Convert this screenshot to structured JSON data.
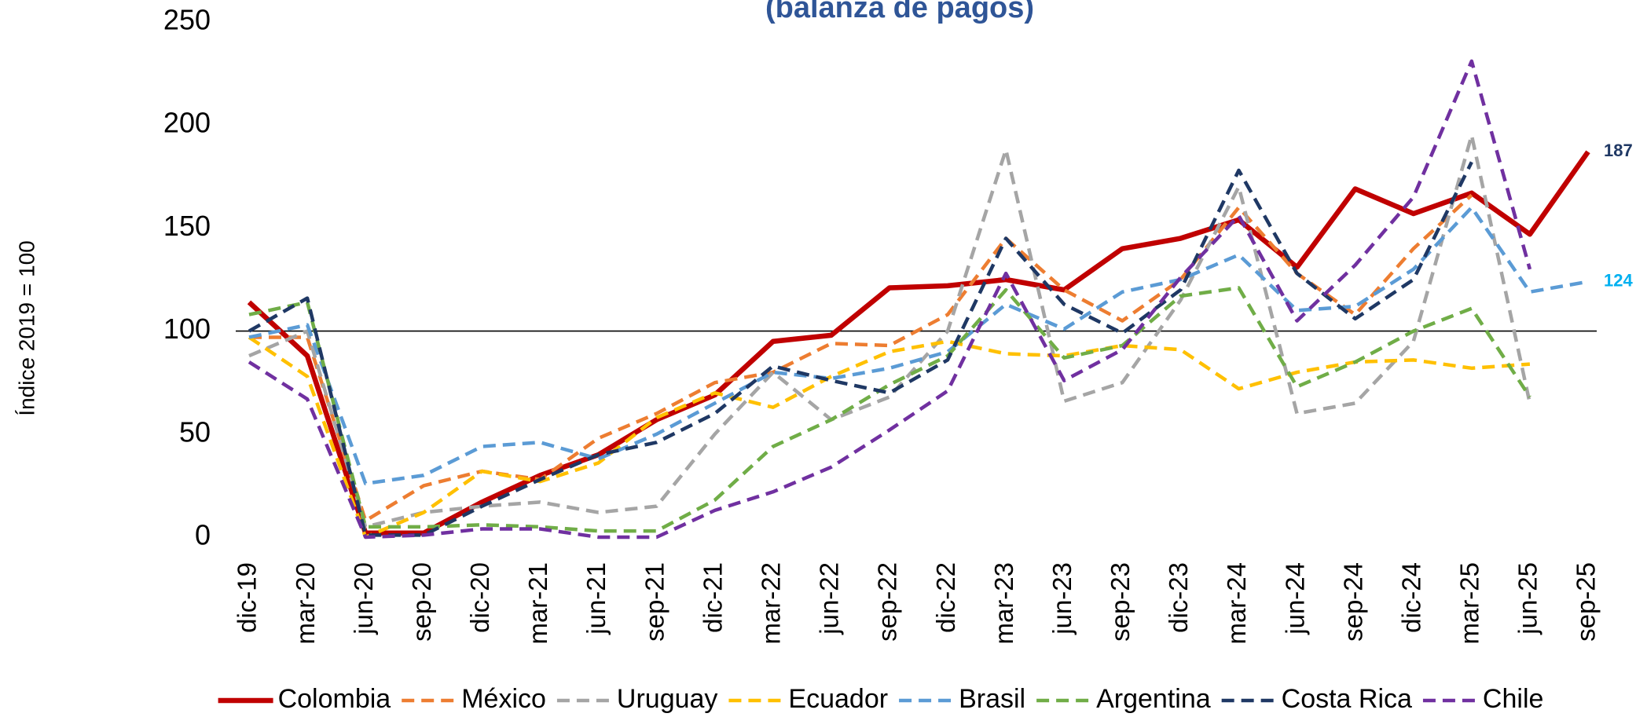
{
  "chart_data": {
    "type": "line",
    "title": "(balanza de pagos)",
    "ylabel": "Índice 2019 = 100",
    "categories": [
      "dic-19",
      "mar-20",
      "jun-20",
      "sep-20",
      "dic-20",
      "mar-21",
      "jun-21",
      "sep-21",
      "dic-21",
      "mar-22",
      "jun-22",
      "sep-22",
      "dic-22",
      "mar-23",
      "jun-23",
      "sep-23",
      "dic-23",
      "mar-24",
      "jun-24",
      "sep-24",
      "dic-24",
      "mar-25",
      "jun-25",
      "sep-25"
    ],
    "ylim": [
      0,
      250
    ],
    "yticks": [
      0,
      50,
      100,
      150,
      200,
      250
    ],
    "reference_line": 100,
    "legend": "bottom",
    "series": [
      {
        "name": "Colombia",
        "color": "#c00000",
        "dashed": false,
        "label_last": true,
        "label_color": "#1f3864",
        "values": [
          114,
          88,
          2,
          2,
          17,
          30,
          40,
          57,
          69,
          95,
          98,
          121,
          122,
          125,
          120,
          140,
          145,
          154,
          131,
          169,
          157,
          167,
          147,
          187
        ]
      },
      {
        "name": "México",
        "color": "#ed7d31",
        "dashed": true,
        "values": [
          97,
          97,
          8,
          25,
          32,
          28,
          48,
          60,
          75,
          80,
          94,
          93,
          108,
          145,
          120,
          105,
          125,
          160,
          128,
          108,
          140,
          166,
          null,
          null
        ]
      },
      {
        "name": "Uruguay",
        "color": "#a5a5a5",
        "dashed": true,
        "values": [
          88,
          100,
          5,
          12,
          15,
          17,
          12,
          15,
          50,
          80,
          57,
          68,
          100,
          188,
          66,
          75,
          115,
          170,
          60,
          65,
          95,
          195,
          65,
          null
        ]
      },
      {
        "name": "Ecuador",
        "color": "#ffc000",
        "dashed": true,
        "values": [
          97,
          78,
          0,
          12,
          32,
          27,
          36,
          58,
          70,
          63,
          78,
          90,
          95,
          89,
          88,
          93,
          91,
          72,
          80,
          85,
          86,
          82,
          84,
          null
        ]
      },
      {
        "name": "Brasil",
        "color": "#5b9bd5",
        "dashed": true,
        "label_last": true,
        "label_color": "#00b0f0",
        "values": [
          97,
          103,
          26,
          30,
          44,
          46,
          38,
          50,
          65,
          80,
          77,
          82,
          90,
          113,
          101,
          119,
          125,
          137,
          110,
          112,
          130,
          160,
          119,
          124
        ]
      },
      {
        "name": "Argentina",
        "color": "#70ad47",
        "dashed": true,
        "values": [
          108,
          114,
          5,
          5,
          6,
          5,
          3,
          3,
          18,
          44,
          57,
          74,
          88,
          120,
          87,
          93,
          117,
          121,
          73,
          85,
          100,
          111,
          68,
          null
        ]
      },
      {
        "name": "Costa Rica",
        "color": "#1f3864",
        "dashed": true,
        "values": [
          100,
          116,
          1,
          1,
          15,
          28,
          40,
          46,
          60,
          83,
          76,
          70,
          86,
          145,
          113,
          99,
          120,
          178,
          128,
          106,
          125,
          182,
          null,
          null
        ]
      },
      {
        "name": "Chile",
        "color": "#7030a0",
        "dashed": true,
        "values": [
          85,
          67,
          0,
          1,
          4,
          4,
          0,
          0,
          13,
          22,
          34,
          52,
          71,
          128,
          76,
          91,
          126,
          156,
          105,
          132,
          165,
          231,
          130,
          null
        ]
      }
    ]
  }
}
